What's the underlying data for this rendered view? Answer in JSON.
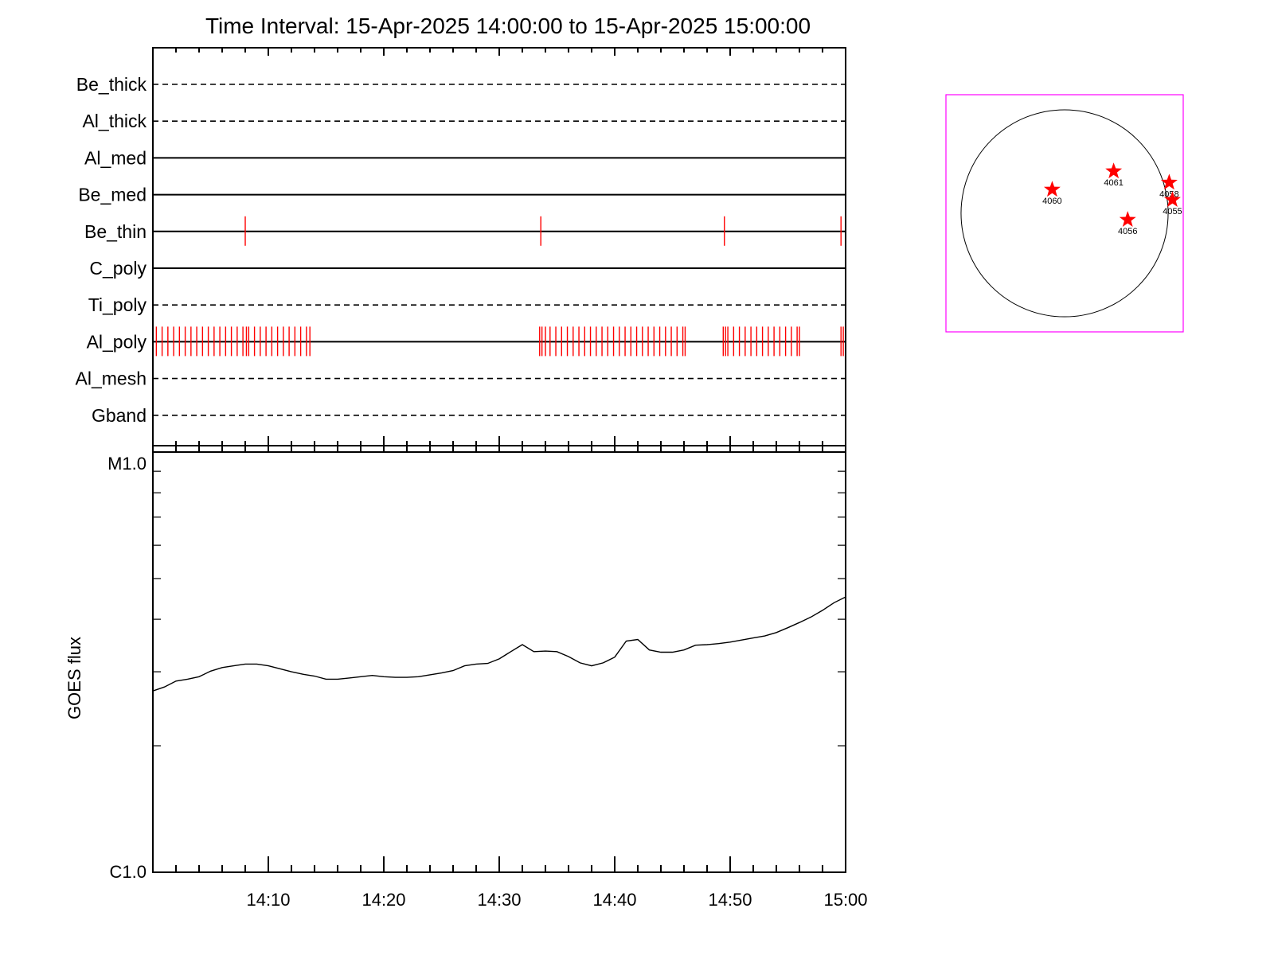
{
  "chart_data": [
    {
      "type": "line",
      "title": "Time Interval: 15-Apr-2025 14:00:00 to 15-Apr-2025 15:00:00",
      "x_range": [
        "14:00",
        "15:00"
      ],
      "x_ticks": [
        "14:10",
        "14:20",
        "14:30",
        "14:40",
        "14:50",
        "15:00"
      ],
      "ylabel": "GOES flux",
      "y_scale": "log",
      "y_range": [
        1e-06,
        1e-05
      ],
      "y_tick_labels": [
        "C1.0",
        "M1.0"
      ],
      "goes_color": "#000000",
      "x": [
        "14:00",
        "14:01",
        "14:02",
        "14:03",
        "14:04",
        "14:05",
        "14:06",
        "14:07",
        "14:08",
        "14:09",
        "14:10",
        "14:11",
        "14:12",
        "14:13",
        "14:14",
        "14:15",
        "14:16",
        "14:17",
        "14:18",
        "14:19",
        "14:20",
        "14:21",
        "14:22",
        "14:23",
        "14:24",
        "14:25",
        "14:26",
        "14:27",
        "14:28",
        "14:29",
        "14:30",
        "14:31",
        "14:32",
        "14:33",
        "14:34",
        "14:35",
        "14:36",
        "14:37",
        "14:38",
        "14:39",
        "14:40",
        "14:41",
        "14:42",
        "14:43",
        "14:44",
        "14:45",
        "14:46",
        "14:47",
        "14:48",
        "14:49",
        "14:50",
        "14:51",
        "14:52",
        "14:53",
        "14:54",
        "14:55",
        "14:56",
        "14:57",
        "14:58",
        "14:59",
        "15:00"
      ],
      "y": [
        2.7e-06,
        2.76e-06,
        2.85e-06,
        2.88e-06,
        2.92e-06,
        3.01e-06,
        3.07e-06,
        3.1e-06,
        3.13e-06,
        3.13e-06,
        3.1e-06,
        3.05e-06,
        3e-06,
        2.96e-06,
        2.93e-06,
        2.88e-06,
        2.88e-06,
        2.9e-06,
        2.92e-06,
        2.94e-06,
        2.92e-06,
        2.91e-06,
        2.91e-06,
        2.92e-06,
        2.95e-06,
        2.98e-06,
        3.02e-06,
        3.1e-06,
        3.13e-06,
        3.14e-06,
        3.22e-06,
        3.35e-06,
        3.48e-06,
        3.35e-06,
        3.36e-06,
        3.35e-06,
        3.26e-06,
        3.15e-06,
        3.1e-06,
        3.15e-06,
        3.25e-06,
        3.55e-06,
        3.58e-06,
        3.38e-06,
        3.34e-06,
        3.34e-06,
        3.38e-06,
        3.47e-06,
        3.48e-06,
        3.5e-06,
        3.53e-06,
        3.57e-06,
        3.61e-06,
        3.65e-06,
        3.72e-06,
        3.82e-06,
        3.93e-06,
        4.05e-06,
        4.2e-06,
        4.38e-06,
        4.52e-06
      ]
    },
    {
      "type": "scatter",
      "title": "",
      "x_range": [
        "14:00",
        "15:00"
      ],
      "series": [
        {
          "name": "Be_thick",
          "line": "dashed",
          "events": []
        },
        {
          "name": "Al_thick",
          "line": "dashed",
          "events": []
        },
        {
          "name": "Al_med",
          "line": "solid",
          "events": []
        },
        {
          "name": "Be_med",
          "line": "solid",
          "events": []
        },
        {
          "name": "Be_thin",
          "line": "solid",
          "events": [
            "14:08",
            "14:33.6",
            "14:49.5",
            "14:59.6"
          ]
        },
        {
          "name": "C_poly",
          "line": "solid",
          "events": []
        },
        {
          "name": "Ti_poly",
          "line": "dashed",
          "events": []
        },
        {
          "name": "Al_poly",
          "line": "solid",
          "events": [
            "14:00.3",
            "14:00.8",
            "14:01.3",
            "14:01.8",
            "14:02.3",
            "14:02.8",
            "14:03.3",
            "14:03.8",
            "14:04.3",
            "14:04.8",
            "14:05.3",
            "14:05.8",
            "14:06.3",
            "14:06.8",
            "14:07.3",
            "14:07.8",
            "14:08.1",
            "14:08.3",
            "14:08.8",
            "14:09.3",
            "14:09.8",
            "14:10.3",
            "14:10.8",
            "14:11.3",
            "14:11.8",
            "14:12.3",
            "14:12.8",
            "14:13.3",
            "14:13.6",
            "14:33.5",
            "14:33.7",
            "14:34.0",
            "14:34.4",
            "14:34.9",
            "14:35.4",
            "14:35.9",
            "14:36.4",
            "14:36.9",
            "14:37.4",
            "14:37.9",
            "14:38.4",
            "14:38.9",
            "14:39.4",
            "14:39.9",
            "14:40.4",
            "14:40.9",
            "14:41.4",
            "14:41.9",
            "14:42.4",
            "14:42.9",
            "14:43.4",
            "14:43.9",
            "14:44.4",
            "14:44.9",
            "14:45.4",
            "14:45.9",
            "14:46.1",
            "14:49.4",
            "14:49.6",
            "14:49.8",
            "14:50.3",
            "14:50.8",
            "14:51.3",
            "14:51.8",
            "14:52.3",
            "14:52.8",
            "14:53.3",
            "14:53.8",
            "14:54.3",
            "14:54.8",
            "14:55.3",
            "14:55.8",
            "14:56.0",
            "14:59.6",
            "14:59.8"
          ]
        },
        {
          "name": "Al_mesh",
          "line": "dashed",
          "events": []
        },
        {
          "name": "Gband",
          "line": "dashed",
          "events": []
        }
      ],
      "event_color": "#ff0000"
    },
    {
      "type": "scatter",
      "title": "",
      "marker": "star",
      "marker_color": "#ff0000",
      "frame_color": "#ff00ff",
      "solar_radius_arcsec": 960,
      "field_of_view_arcsec": [
        -1100,
        1100
      ],
      "regions": [
        {
          "name": "4060",
          "x": -115,
          "y": 220
        },
        {
          "name": "4061",
          "x": 455,
          "y": 390
        },
        {
          "name": "4058",
          "x": 970,
          "y": 285
        },
        {
          "name": "4055",
          "x": 1000,
          "y": 125
        },
        {
          "name": "4056",
          "x": 585,
          "y": -60
        }
      ]
    }
  ]
}
